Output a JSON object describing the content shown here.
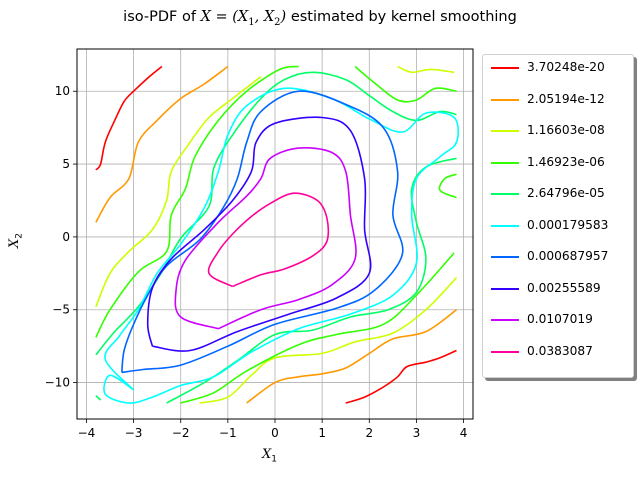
{
  "chart_data": {
    "type": "contour",
    "title_prefix": "iso-PDF of ",
    "title_math": "X = (X",
    "title_suffix": " estimated by kernel smoothing",
    "xlabel": "X",
    "xlabel_sub": "1",
    "ylabel": "X",
    "ylabel_sub": "2",
    "xlim": [
      -4.2,
      4.2
    ],
    "ylim": [
      -12.5,
      12.9
    ],
    "xticks": [
      -4,
      -3,
      -2,
      -1,
      0,
      1,
      2,
      3,
      4
    ],
    "yticks": [
      -10,
      -5,
      0,
      5,
      10
    ],
    "xtick_labels": [
      "−4",
      "−3",
      "−2",
      "−1",
      "0",
      "1",
      "2",
      "3",
      "4"
    ],
    "ytick_labels": [
      "−10",
      "−5",
      "0",
      "5",
      "10"
    ],
    "grid": true,
    "legend_placement": "outside-right",
    "levels": [
      {
        "label": "3.70248e-20",
        "color": "#ff0000",
        "segments": [
          [
            [
              -3.8,
              4.6
            ],
            [
              -3.7,
              5.0
            ],
            [
              -3.6,
              6.5
            ],
            [
              -3.4,
              8.0
            ],
            [
              -3.2,
              9.3
            ],
            [
              -3.0,
              10.0
            ],
            [
              -2.7,
              10.9
            ],
            [
              -2.4,
              11.7
            ]
          ],
          [
            [
              1.5,
              -11.4
            ],
            [
              1.9,
              -11.0
            ],
            [
              2.3,
              -10.3
            ],
            [
              2.6,
              -9.6
            ],
            [
              2.8,
              -8.9
            ],
            [
              3.2,
              -8.6
            ],
            [
              3.5,
              -8.3
            ],
            [
              3.85,
              -7.8
            ]
          ]
        ]
      },
      {
        "label": "2.05194e-12",
        "color": "#ff9900",
        "segments": [
          [
            [
              -3.8,
              1.0
            ],
            [
              -3.5,
              2.7
            ],
            [
              -3.1,
              4.0
            ],
            [
              -2.9,
              6.5
            ],
            [
              -2.5,
              8.0
            ],
            [
              -2.0,
              9.5
            ],
            [
              -1.5,
              10.5
            ],
            [
              -1.0,
              11.7
            ]
          ],
          [
            [
              -0.6,
              -11.4
            ],
            [
              0.0,
              -10.0
            ],
            [
              0.5,
              -9.6
            ],
            [
              1.0,
              -9.4
            ],
            [
              1.5,
              -9.0
            ],
            [
              2.0,
              -8.0
            ],
            [
              2.5,
              -7.0
            ],
            [
              3.2,
              -6.5
            ],
            [
              3.85,
              -5.0
            ]
          ]
        ]
      },
      {
        "label": "1.16603e-08",
        "color": "#ccff00",
        "segments": [
          [
            [
              -3.8,
              -4.8
            ],
            [
              -3.5,
              -2.5
            ],
            [
              -3.1,
              -1.0
            ],
            [
              -2.6,
              0.5
            ],
            [
              -2.3,
              2.5
            ],
            [
              -2.2,
              4.5
            ],
            [
              -1.8,
              6.5
            ],
            [
              -1.4,
              8.2
            ],
            [
              -0.9,
              9.5
            ],
            [
              -0.3,
              11.0
            ]
          ],
          [
            [
              -1.6,
              -11.4
            ],
            [
              -1.0,
              -11.0
            ],
            [
              -0.5,
              -9.5
            ],
            [
              0.0,
              -8.3
            ],
            [
              1.0,
              -8.0
            ],
            [
              1.7,
              -7.2
            ],
            [
              2.5,
              -6.6
            ],
            [
              3.2,
              -5.0
            ],
            [
              3.85,
              -2.8
            ]
          ],
          [
            [
              2.6,
              11.7
            ],
            [
              2.9,
              11.3
            ],
            [
              3.3,
              11.5
            ],
            [
              3.8,
              11.3
            ]
          ]
        ]
      },
      {
        "label": "1.46923e-06",
        "color": "#33ff00",
        "segments": [
          [
            [
              -3.8,
              -6.9
            ],
            [
              -3.5,
              -5.0
            ],
            [
              -2.9,
              -2.4
            ],
            [
              -2.3,
              -1.0
            ],
            [
              -2.2,
              1.5
            ],
            [
              -1.9,
              3.3
            ],
            [
              -1.7,
              5.5
            ],
            [
              -1.2,
              8.0
            ],
            [
              -0.6,
              10.0
            ],
            [
              0.1,
              11.5
            ],
            [
              0.5,
              11.7
            ]
          ],
          [
            [
              -2.0,
              -11.4
            ],
            [
              -1.3,
              -10.7
            ],
            [
              -0.6,
              -9.2
            ],
            [
              0.5,
              -7.4
            ],
            [
              1.3,
              -6.7
            ],
            [
              2.3,
              -6.0
            ],
            [
              3.0,
              -4.0
            ],
            [
              3.8,
              -1.1
            ]
          ],
          [
            [
              1.7,
              11.7
            ],
            [
              2.1,
              10.6
            ],
            [
              2.6,
              9.4
            ],
            [
              3.0,
              9.4
            ],
            [
              3.4,
              10.2
            ],
            [
              3.85,
              10.0
            ]
          ],
          [
            [
              3.85,
              4.3
            ],
            [
              3.6,
              4.0
            ],
            [
              3.5,
              3.2
            ],
            [
              3.85,
              2.7
            ]
          ]
        ]
      },
      {
        "label": "2.64796e-05",
        "color": "#00ff66",
        "segments": [
          [
            [
              -3.8,
              -8.1
            ],
            [
              -3.4,
              -6.5
            ],
            [
              -2.9,
              -4.8
            ],
            [
              -2.4,
              -2.4
            ],
            [
              -2.0,
              -0.1
            ],
            [
              -1.4,
              2.1
            ],
            [
              -1.3,
              4.7
            ],
            [
              -0.9,
              7.0
            ],
            [
              -0.3,
              9.5
            ],
            [
              0.2,
              10.8
            ],
            [
              0.8,
              11.3
            ],
            [
              1.5,
              10.8
            ],
            [
              2.0,
              9.7
            ],
            [
              2.5,
              8.6
            ],
            [
              3.0,
              8.0
            ],
            [
              3.5,
              8.6
            ],
            [
              3.85,
              8.4
            ]
          ],
          [
            [
              3.85,
              5.4
            ],
            [
              3.2,
              4.8
            ],
            [
              2.9,
              3.3
            ],
            [
              3.0,
              1.0
            ],
            [
              3.2,
              -1.5
            ],
            [
              3.0,
              -3.8
            ],
            [
              2.4,
              -5.0
            ],
            [
              1.6,
              -5.5
            ],
            [
              0.8,
              -6.4
            ],
            [
              0.0,
              -6.7
            ],
            [
              -0.8,
              -8.5
            ],
            [
              -1.5,
              -10.0
            ],
            [
              -2.3,
              -11.4
            ]
          ],
          [
            [
              -3.8,
              -10.9
            ],
            [
              -3.7,
              -11.2
            ]
          ]
        ]
      },
      {
        "label": "0.000179583",
        "color": "#00ffff",
        "segments": [
          [
            [
              -3.0,
              -10.5
            ],
            [
              -3.5,
              -9.5
            ],
            [
              -3.6,
              -10.8
            ],
            [
              -3.1,
              -11.4
            ],
            [
              -2.6,
              -11.0
            ],
            [
              -2.0,
              -10.2
            ],
            [
              -1.3,
              -9.6
            ],
            [
              -0.5,
              -7.9
            ],
            [
              0.5,
              -6.3
            ],
            [
              1.6,
              -5.3
            ],
            [
              2.5,
              -4.0
            ],
            [
              3.0,
              -1.8
            ],
            [
              2.9,
              1.5
            ],
            [
              3.0,
              4.0
            ],
            [
              3.5,
              5.5
            ],
            [
              3.85,
              6.5
            ],
            [
              3.8,
              8.2
            ],
            [
              3.2,
              8.5
            ],
            [
              2.7,
              7.2
            ],
            [
              2.0,
              8.1
            ],
            [
              1.2,
              9.5
            ],
            [
              0.2,
              10.2
            ],
            [
              -0.6,
              9.0
            ],
            [
              -1.0,
              7.0
            ],
            [
              -1.2,
              4.5
            ],
            [
              -1.5,
              2.0
            ],
            [
              -2.0,
              -0.5
            ],
            [
              -2.5,
              -2.5
            ],
            [
              -2.9,
              -5.0
            ],
            [
              -3.3,
              -6.8
            ],
            [
              -3.6,
              -8.4
            ],
            [
              -3.0,
              -10.5
            ]
          ]
        ]
      },
      {
        "label": "0.000687957",
        "color": "#0066ff",
        "segments": [
          [
            [
              -3.25,
              -9.3
            ],
            [
              -2.8,
              -9.1
            ],
            [
              -2.0,
              -8.8
            ],
            [
              -1.0,
              -7.5
            ],
            [
              0.0,
              -6.0
            ],
            [
              1.3,
              -4.9
            ],
            [
              2.1,
              -3.7
            ],
            [
              2.7,
              -1.2
            ],
            [
              2.5,
              1.5
            ],
            [
              2.6,
              4.5
            ],
            [
              2.3,
              7.5
            ],
            [
              1.5,
              9.1
            ],
            [
              0.5,
              10.0
            ],
            [
              -0.3,
              8.6
            ],
            [
              -0.6,
              6.5
            ],
            [
              -0.8,
              4.0
            ],
            [
              -1.1,
              2.0
            ],
            [
              -1.6,
              -0.2
            ],
            [
              -2.3,
              -2.0
            ],
            [
              -2.7,
              -4.0
            ],
            [
              -3.0,
              -6.0
            ],
            [
              -3.2,
              -7.8
            ],
            [
              -3.25,
              -9.3
            ]
          ]
        ]
      },
      {
        "label": "0.00255589",
        "color": "#3300ff",
        "segments": [
          [
            [
              -2.6,
              -7.5
            ],
            [
              -1.8,
              -7.8
            ],
            [
              -0.8,
              -6.5
            ],
            [
              0.3,
              -5.3
            ],
            [
              1.3,
              -4.2
            ],
            [
              2.0,
              -2.5
            ],
            [
              1.9,
              0.5
            ],
            [
              1.9,
              4.0
            ],
            [
              1.6,
              7.3
            ],
            [
              1.0,
              8.2
            ],
            [
              0.0,
              7.8
            ],
            [
              -0.4,
              6.5
            ],
            [
              -0.5,
              4.5
            ],
            [
              -0.9,
              2.5
            ],
            [
              -1.5,
              0.5
            ],
            [
              -2.2,
              -1.5
            ],
            [
              -2.6,
              -3.5
            ],
            [
              -2.7,
              -6.0
            ],
            [
              -2.6,
              -7.5
            ]
          ]
        ]
      },
      {
        "label": "0.0107019",
        "color": "#cc00ff",
        "segments": [
          [
            [
              -1.2,
              -6.3
            ],
            [
              -0.3,
              -5.0
            ],
            [
              0.5,
              -4.3
            ],
            [
              1.2,
              -3.3
            ],
            [
              1.7,
              -1.5
            ],
            [
              1.6,
              1.5
            ],
            [
              1.5,
              4.5
            ],
            [
              1.2,
              5.8
            ],
            [
              0.5,
              6.1
            ],
            [
              -0.1,
              5.4
            ],
            [
              -0.3,
              4.0
            ],
            [
              -0.6,
              2.8
            ],
            [
              -1.2,
              1.0
            ],
            [
              -1.9,
              -1.6
            ],
            [
              -2.1,
              -3.7
            ],
            [
              -2.0,
              -5.5
            ],
            [
              -1.2,
              -6.3
            ]
          ]
        ]
      },
      {
        "label": "0.0383087",
        "color": "#ff0099",
        "segments": [
          [
            [
              -0.9,
              -3.4
            ],
            [
              -0.3,
              -2.6
            ],
            [
              0.2,
              -2.2
            ],
            [
              0.8,
              -1.3
            ],
            [
              1.1,
              -0.3
            ],
            [
              1.1,
              1.3
            ],
            [
              0.9,
              2.5
            ],
            [
              0.4,
              3.0
            ],
            [
              -0.1,
              2.3
            ],
            [
              -0.5,
              1.4
            ],
            [
              -0.9,
              0.2
            ],
            [
              -1.2,
              -1.0
            ],
            [
              -1.4,
              -2.5
            ],
            [
              -0.9,
              -3.4
            ]
          ]
        ]
      }
    ]
  }
}
